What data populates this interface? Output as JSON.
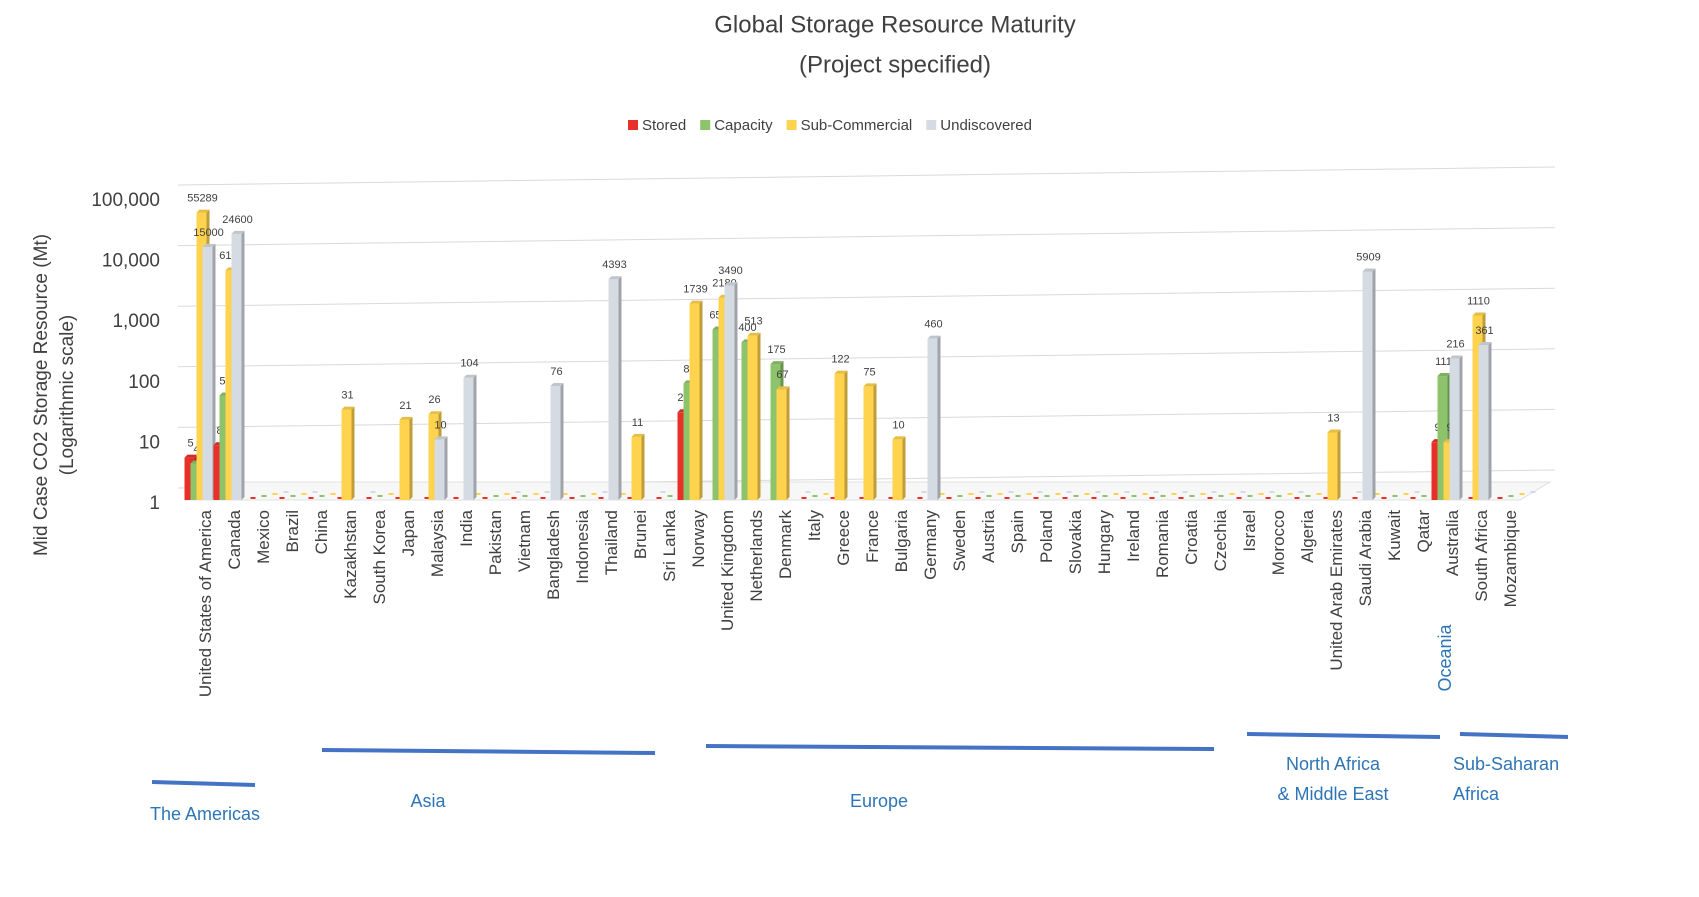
{
  "chart_data": {
    "type": "bar",
    "title": "Global Storage Resource Maturity",
    "subtitle": "(Project specified)",
    "ylabel": "Mid Case CO2 Storage Resource (Mt)",
    "ylabel_note": "(Logarithmic scale)",
    "log_scale": true,
    "grid": true,
    "legend": "top",
    "ylim": [
      1,
      100000
    ],
    "yticks": [
      1,
      10,
      100,
      {
        "value": 1000,
        "label": "1,000"
      },
      {
        "value": 10000,
        "label": "10,000"
      },
      {
        "value": 100000,
        "label": "100,000"
      }
    ],
    "categories": [
      "United States of America",
      "Canada",
      "Mexico",
      "Brazil",
      "China",
      "Kazakhstan",
      "South Korea",
      "Japan",
      "Malaysia",
      "India",
      "Pakistan",
      "Vietnam",
      "Bangladesh",
      "Indonesia",
      "Thailand",
      "Brunei",
      "Sri Lanka",
      "Norway",
      "United Kingdom",
      "Netherlands",
      "Denmark",
      "Italy",
      "Greece",
      "France",
      "Bulgaria",
      "Germany",
      "Sweden",
      "Austria",
      "Spain",
      "Poland",
      "Slovakia",
      "Hungary",
      "Ireland",
      "Romania",
      "Croatia",
      "Czechia",
      "Israel",
      "Morocco",
      "Algeria",
      "United Arab Emirates",
      "Saudi Arabia",
      "Kuwait",
      "Qatar",
      "Australia",
      "South Africa",
      "Mozambique"
    ],
    "series": [
      {
        "name": "Stored",
        "color": "#e8302a",
        "values": [
          5,
          8,
          null,
          null,
          null,
          null,
          null,
          null,
          null,
          null,
          null,
          null,
          null,
          null,
          null,
          null,
          null,
          28,
          null,
          null,
          null,
          null,
          null,
          null,
          null,
          null,
          null,
          null,
          null,
          null,
          null,
          null,
          null,
          null,
          null,
          null,
          null,
          null,
          null,
          null,
          null,
          null,
          null,
          9,
          null,
          null
        ]
      },
      {
        "name": "Capacity",
        "color": "#8dc46b",
        "values": [
          4,
          53,
          null,
          null,
          null,
          null,
          null,
          null,
          null,
          null,
          null,
          null,
          null,
          null,
          null,
          null,
          null,
          84,
          650,
          400,
          175,
          null,
          null,
          null,
          null,
          null,
          null,
          null,
          null,
          null,
          null,
          null,
          null,
          null,
          null,
          null,
          null,
          null,
          null,
          null,
          null,
          null,
          null,
          111,
          null,
          null
        ]
      },
      {
        "name": "Sub-Commercial",
        "color": "#ffd34d",
        "values": [
          55289,
          6169,
          null,
          null,
          null,
          31,
          null,
          21,
          26,
          null,
          null,
          null,
          null,
          null,
          null,
          11,
          null,
          1739,
          2180,
          513,
          67,
          null,
          122,
          75,
          10,
          null,
          null,
          null,
          null,
          null,
          null,
          null,
          null,
          null,
          null,
          null,
          null,
          null,
          null,
          13,
          null,
          null,
          null,
          9,
          1110,
          null
        ]
      },
      {
        "name": "Undiscovered",
        "color": "#d5dbe3",
        "values": [
          15000,
          24600,
          null,
          null,
          null,
          null,
          null,
          null,
          10,
          104,
          null,
          null,
          76,
          null,
          4393,
          null,
          null,
          null,
          3490,
          null,
          null,
          null,
          null,
          null,
          null,
          460,
          null,
          null,
          null,
          null,
          null,
          null,
          null,
          null,
          null,
          null,
          null,
          null,
          null,
          null,
          5909,
          null,
          null,
          216,
          361,
          null
        ]
      }
    ],
    "annotations": [
      {
        "text": [
          "The Americas"
        ]
      },
      {
        "text": [
          "Asia"
        ]
      },
      {
        "text": [
          "Europe"
        ]
      },
      {
        "text": [
          "North Africa",
          "& Middle East"
        ]
      },
      {
        "text": [
          "Sub-Saharan",
          "Africa"
        ]
      },
      {
        "text": [
          "Oceania"
        ]
      }
    ]
  }
}
